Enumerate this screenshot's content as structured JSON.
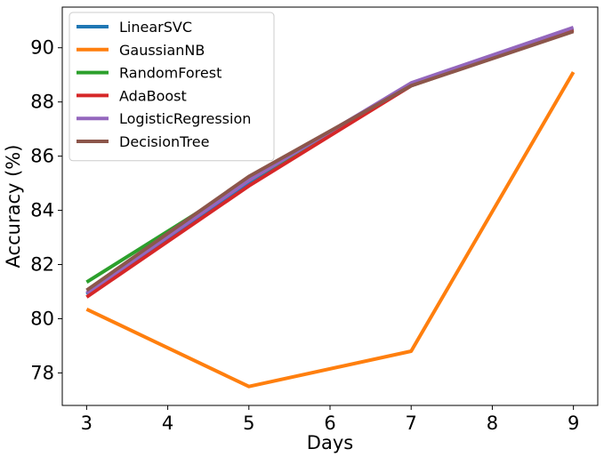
{
  "chart_data": {
    "type": "line",
    "title": "",
    "xlabel": "Days",
    "ylabel": "Accuracy (%)",
    "x": [
      3,
      5,
      7,
      9
    ],
    "xlim": [
      2.7,
      9.3
    ],
    "ylim": [
      76.8,
      91.5
    ],
    "x_ticks": [
      3,
      4,
      5,
      6,
      7,
      8,
      9
    ],
    "y_ticks": [
      78,
      80,
      82,
      84,
      86,
      88,
      90
    ],
    "grid": false,
    "legend_position": "top-left",
    "series": [
      {
        "name": "LinearSVC",
        "color": "#1f77b4",
        "values": [
          80.9,
          85.0,
          88.6,
          90.7
        ]
      },
      {
        "name": "GaussianNB",
        "color": "#ff7f0e",
        "values": [
          80.35,
          77.5,
          78.8,
          89.1
        ]
      },
      {
        "name": "RandomForest",
        "color": "#2ca02c",
        "values": [
          81.35,
          85.1,
          88.6,
          90.65
        ]
      },
      {
        "name": "AdaBoost",
        "color": "#d62728",
        "values": [
          80.8,
          84.9,
          88.6,
          90.65
        ]
      },
      {
        "name": "LogisticRegression",
        "color": "#9467bd",
        "values": [
          80.95,
          85.1,
          88.7,
          90.75
        ]
      },
      {
        "name": "DecisionTree",
        "color": "#8c564b",
        "values": [
          81.05,
          85.25,
          88.6,
          90.6
        ]
      }
    ]
  }
}
